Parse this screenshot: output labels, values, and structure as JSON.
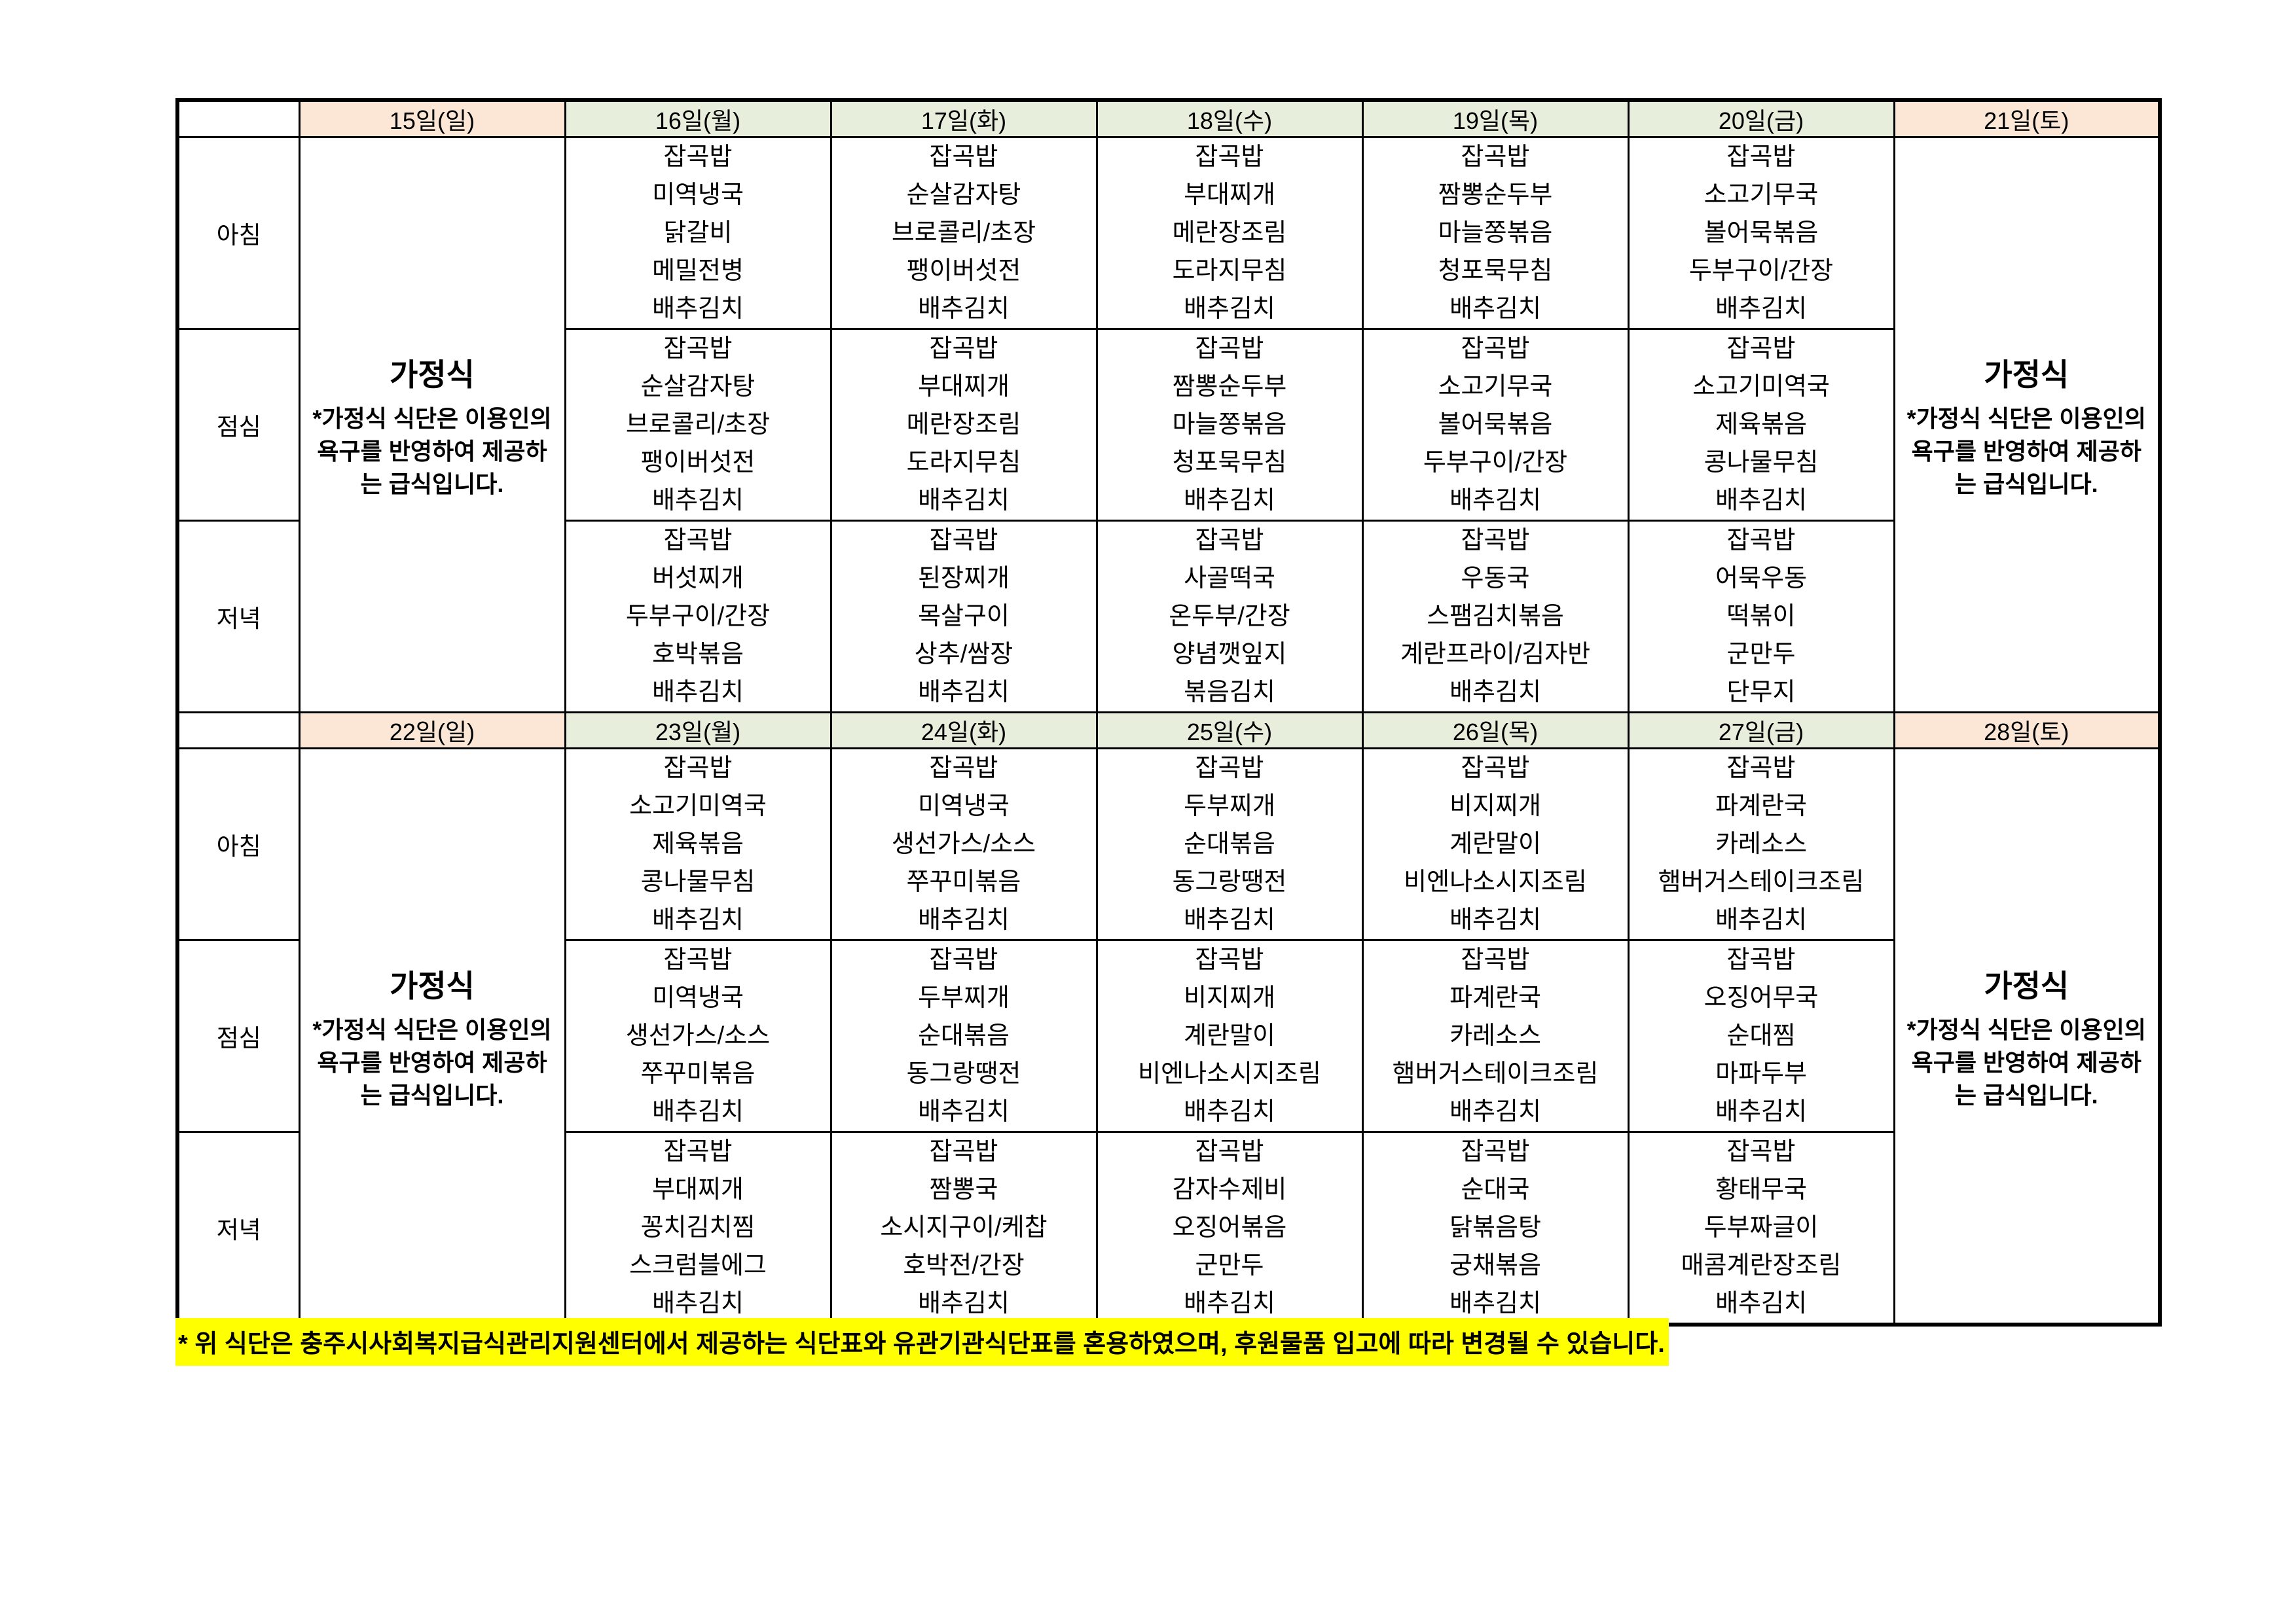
{
  "meal_rows": [
    "아침",
    "점심",
    "저녁"
  ],
  "home_meal": {
    "title": "가정식",
    "description": "*가정식 식단은 이용인의\n욕구를 반영하여 제공하\n는 급식입니다."
  },
  "footer": {
    "note": "* 위 식단은 충주시사회복지급식관리지원센터에서 제공하는 식단표와 유관기관식단표를 혼용하였으며, 후원물품 입고에 따라 변경될 수 있습니다."
  },
  "colors": {
    "weekend_header": "#FCE6D5",
    "weekday_header": "#E7EEDC",
    "highlight": "#FFFF00",
    "border": "#000000"
  },
  "weeks": [
    {
      "days": [
        {
          "date": "15일(일)",
          "kind": "home"
        },
        {
          "date": "16일(월)",
          "kind": "menu",
          "meals": [
            [
              "잡곡밥",
              "미역냉국",
              "닭갈비",
              "메밀전병",
              "배추김치"
            ],
            [
              "잡곡밥",
              "순살감자탕",
              "브로콜리/초장",
              "팽이버섯전",
              "배추김치"
            ],
            [
              "잡곡밥",
              "버섯찌개",
              "두부구이/간장",
              "호박볶음",
              "배추김치"
            ]
          ]
        },
        {
          "date": "17일(화)",
          "kind": "menu",
          "meals": [
            [
              "잡곡밥",
              "순살감자탕",
              "브로콜리/초장",
              "팽이버섯전",
              "배추김치"
            ],
            [
              "잡곡밥",
              "부대찌개",
              "메란장조림",
              "도라지무침",
              "배추김치"
            ],
            [
              "잡곡밥",
              "된장찌개",
              "목살구이",
              "상추/쌈장",
              "배추김치"
            ]
          ]
        },
        {
          "date": "18일(수)",
          "kind": "menu",
          "meals": [
            [
              "잡곡밥",
              "부대찌개",
              "메란장조림",
              "도라지무침",
              "배추김치"
            ],
            [
              "잡곡밥",
              "짬뽕순두부",
              "마늘쫑볶음",
              "청포묵무침",
              "배추김치"
            ],
            [
              "잡곡밥",
              "사골떡국",
              "온두부/간장",
              "양념깻잎지",
              "볶음김치"
            ]
          ]
        },
        {
          "date": "19일(목)",
          "kind": "menu",
          "meals": [
            [
              "잡곡밥",
              "짬뽕순두부",
              "마늘쫑볶음",
              "청포묵무침",
              "배추김치"
            ],
            [
              "잡곡밥",
              "소고기무국",
              "볼어묵볶음",
              "두부구이/간장",
              "배추김치"
            ],
            [
              "잡곡밥",
              "우동국",
              "스팸김치볶음",
              "계란프라이/김자반",
              "배추김치"
            ]
          ]
        },
        {
          "date": "20일(금)",
          "kind": "menu",
          "meals": [
            [
              "잡곡밥",
              "소고기무국",
              "볼어묵볶음",
              "두부구이/간장",
              "배추김치"
            ],
            [
              "잡곡밥",
              "소고기미역국",
              "제육볶음",
              "콩나물무침",
              "배추김치"
            ],
            [
              "잡곡밥",
              "어묵우동",
              "떡볶이",
              "군만두",
              "단무지"
            ]
          ]
        },
        {
          "date": "21일(토)",
          "kind": "home"
        }
      ]
    },
    {
      "days": [
        {
          "date": "22일(일)",
          "kind": "home"
        },
        {
          "date": "23일(월)",
          "kind": "menu",
          "meals": [
            [
              "잡곡밥",
              "소고기미역국",
              "제육볶음",
              "콩나물무침",
              "배추김치"
            ],
            [
              "잡곡밥",
              "미역냉국",
              "생선가스/소스",
              "쭈꾸미볶음",
              "배추김치"
            ],
            [
              "잡곡밥",
              "부대찌개",
              "꽁치김치찜",
              "스크럼블에그",
              "배추김치"
            ]
          ]
        },
        {
          "date": "24일(화)",
          "kind": "menu",
          "meals": [
            [
              "잡곡밥",
              "미역냉국",
              "생선가스/소스",
              "쭈꾸미볶음",
              "배추김치"
            ],
            [
              "잡곡밥",
              "두부찌개",
              "순대볶음",
              "동그랑땡전",
              "배추김치"
            ],
            [
              "잡곡밥",
              "짬뽕국",
              "소시지구이/케찹",
              "호박전/간장",
              "배추김치"
            ]
          ]
        },
        {
          "date": "25일(수)",
          "kind": "menu",
          "meals": [
            [
              "잡곡밥",
              "두부찌개",
              "순대볶음",
              "동그랑땡전",
              "배추김치"
            ],
            [
              "잡곡밥",
              "비지찌개",
              "계란말이",
              "비엔나소시지조림",
              "배추김치"
            ],
            [
              "잡곡밥",
              "감자수제비",
              "오징어볶음",
              "군만두",
              "배추김치"
            ]
          ]
        },
        {
          "date": "26일(목)",
          "kind": "menu",
          "meals": [
            [
              "잡곡밥",
              "비지찌개",
              "계란말이",
              "비엔나소시지조림",
              "배추김치"
            ],
            [
              "잡곡밥",
              "파계란국",
              "카레소스",
              "햄버거스테이크조림",
              "배추김치"
            ],
            [
              "잡곡밥",
              "순대국",
              "닭볶음탕",
              "궁채볶음",
              "배추김치"
            ]
          ]
        },
        {
          "date": "27일(금)",
          "kind": "menu",
          "meals": [
            [
              "잡곡밥",
              "파계란국",
              "카레소스",
              "햄버거스테이크조림",
              "배추김치"
            ],
            [
              "잡곡밥",
              "오징어무국",
              "순대찜",
              "마파두부",
              "배추김치"
            ],
            [
              "잡곡밥",
              "황태무국",
              "두부짜글이",
              "매콤계란장조림",
              "배추김치"
            ]
          ]
        },
        {
          "date": "28일(토)",
          "kind": "home"
        }
      ]
    }
  ]
}
